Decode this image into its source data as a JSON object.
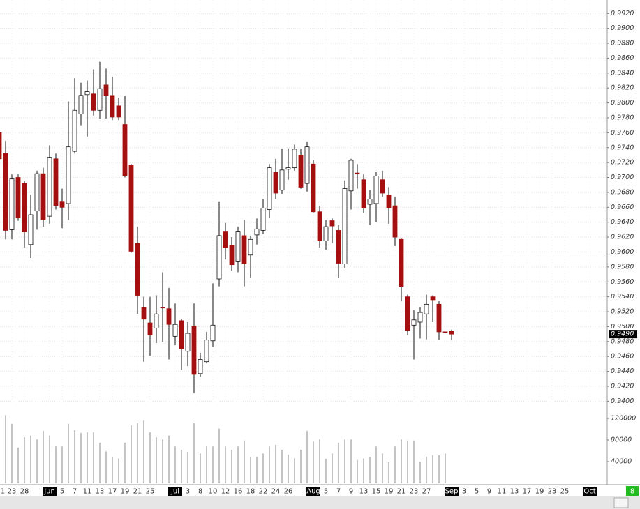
{
  "chart_data": {
    "type": "candlestick",
    "categories": [
      "1",
      null,
      "23",
      null,
      "28",
      null,
      null,
      null,
      "Jun",
      null,
      "5",
      null,
      "7",
      null,
      "11",
      null,
      "13",
      null,
      "17",
      null,
      "19",
      null,
      "21",
      null,
      "25",
      null,
      null,
      null,
      "Jul",
      null,
      "3",
      null,
      "8",
      null,
      "10",
      null,
      "12",
      null,
      "16",
      null,
      "18",
      null,
      "22",
      null,
      "24",
      null,
      "26",
      null,
      null,
      null,
      "Aug",
      null,
      "5",
      null,
      "7",
      null,
      "9",
      null,
      "13",
      null,
      "15",
      null,
      "19",
      null,
      "21",
      null,
      "23",
      null,
      "27",
      null,
      null,
      null,
      "Sep",
      null,
      "3",
      null,
      "5",
      null,
      "9",
      null,
      "11",
      null,
      "13",
      null,
      "17",
      null,
      "19",
      null,
      "23",
      null,
      "25",
      null,
      null,
      null,
      "Oct"
    ],
    "open": [
      0.976,
      0.9732,
      0.963,
      0.97,
      0.9692,
      0.961,
      0.9655,
      0.9705,
      0.9648,
      0.9725,
      0.9668,
      0.9665,
      0.9735,
      0.9785,
      0.9811,
      0.9812,
      0.979,
      0.9824,
      0.981,
      0.9796,
      0.9771,
      0.9716,
      0.9612,
      0.9526,
      0.9505,
      0.9498,
      0.9526,
      0.9524,
      0.9487,
      0.9508,
      0.9467,
      0.9501,
      0.9437,
      0.9453,
      0.9481,
      0.9564,
      0.9627,
      0.9609,
      0.9587,
      0.9622,
      0.9596,
      0.9623,
      0.9629,
      0.9657,
      0.9707,
      0.9683,
      0.9711,
      0.9713,
      0.973,
      0.9692,
      0.9718,
      0.9654,
      0.9615,
      0.9642,
      0.9629,
      0.9584,
      0.9682,
      0.9706,
      0.9697,
      0.9664,
      0.9665,
      0.9697,
      0.9676,
      0.9662,
      0.9617,
      0.954,
      0.9502,
      0.9506,
      0.9517,
      0.954,
      0.953,
      0.9493,
      0.9494,
      null,
      null,
      null,
      null,
      null,
      null,
      null,
      null,
      null,
      null,
      null,
      null,
      null,
      null,
      null,
      null,
      null,
      null,
      null,
      null,
      null,
      null
    ],
    "high": [
      0.976,
      0.9749,
      0.9704,
      0.9704,
      0.9695,
      0.9677,
      0.9709,
      0.9713,
      0.9743,
      0.9732,
      0.9685,
      0.9802,
      0.9833,
      0.9827,
      0.983,
      0.9845,
      0.9855,
      0.9846,
      0.9835,
      0.9807,
      0.9809,
      0.9718,
      0.9634,
      0.954,
      0.954,
      0.9542,
      0.9573,
      0.9552,
      0.9531,
      0.951,
      0.9506,
      0.9531,
      0.9465,
      0.9493,
      0.9558,
      0.9668,
      0.9639,
      0.962,
      0.9634,
      0.9643,
      0.9622,
      0.9645,
      0.9671,
      0.9718,
      0.9725,
      0.9739,
      0.9739,
      0.9744,
      0.9739,
      0.9748,
      0.9723,
      0.9662,
      0.9643,
      0.9645,
      0.9636,
      0.9696,
      0.9725,
      0.9718,
      0.9704,
      0.9683,
      0.9707,
      0.9709,
      0.9687,
      0.9674,
      0.9618,
      0.9543,
      0.9522,
      0.9526,
      0.9543,
      0.9542,
      0.9534,
      0.9493,
      0.9496,
      null,
      null,
      null,
      null,
      null,
      null,
      null,
      null,
      null,
      null,
      null,
      null,
      null,
      null,
      null,
      null,
      null,
      null,
      null,
      null,
      null,
      null
    ],
    "low": [
      0.972,
      0.9617,
      0.9617,
      0.9642,
      0.9606,
      0.9592,
      0.963,
      0.9634,
      0.9638,
      0.9657,
      0.9632,
      0.9643,
      0.9732,
      0.977,
      0.9755,
      0.9783,
      0.9779,
      0.9779,
      0.9777,
      0.9777,
      0.97,
      0.9599,
      0.9517,
      0.9453,
      0.9461,
      0.9478,
      0.9479,
      0.9456,
      0.9475,
      0.9442,
      0.9447,
      0.9411,
      0.9433,
      0.9451,
      0.9473,
      0.9554,
      0.959,
      0.9575,
      0.9573,
      0.9554,
      0.9565,
      0.961,
      0.9624,
      0.9646,
      0.9671,
      0.9678,
      0.9697,
      0.9709,
      0.9685,
      0.9681,
      0.9653,
      0.9606,
      0.9603,
      0.9612,
      0.9565,
      0.9578,
      0.9657,
      0.9685,
      0.9652,
      0.9636,
      0.964,
      0.9674,
      0.9638,
      0.9608,
      0.9534,
      0.9489,
      0.9456,
      0.9484,
      0.9483,
      0.9506,
      0.9482,
      0.9492,
      0.9482,
      null,
      null,
      null,
      null,
      null,
      null,
      null,
      null,
      null,
      null,
      null,
      null,
      null,
      null,
      null,
      null,
      null,
      null,
      null,
      null,
      null,
      null
    ],
    "close": [
      0.9725,
      0.9629,
      0.9698,
      0.9646,
      0.9627,
      0.965,
      0.9705,
      0.9643,
      0.9727,
      0.9662,
      0.966,
      0.9741,
      0.979,
      0.981,
      0.9815,
      0.979,
      0.9819,
      0.981,
      0.9781,
      0.9781,
      0.9702,
      0.9601,
      0.9542,
      0.951,
      0.9489,
      0.9517,
      0.9525,
      0.9503,
      0.9503,
      0.947,
      0.9491,
      0.9436,
      0.9456,
      0.9482,
      0.9502,
      0.9622,
      0.9606,
      0.9583,
      0.9627,
      0.9584,
      0.9617,
      0.9631,
      0.9659,
      0.9713,
      0.9679,
      0.971,
      0.9713,
      0.9738,
      0.9687,
      0.9741,
      0.9654,
      0.9615,
      0.9634,
      0.9635,
      0.9585,
      0.9685,
      0.9723,
      0.9705,
      0.9659,
      0.9671,
      0.9702,
      0.9679,
      0.9659,
      0.962,
      0.9554,
      0.9495,
      0.9509,
      0.9519,
      0.953,
      0.9536,
      0.9493,
      0.9492,
      0.949,
      null,
      null,
      null,
      null,
      null,
      null,
      null,
      null,
      null,
      null,
      null,
      null,
      null,
      null,
      null,
      null,
      null,
      null,
      null,
      null,
      null,
      null
    ],
    "volume": [
      null,
      126000,
      110000,
      66000,
      85000,
      88000,
      81000,
      97000,
      88000,
      68000,
      68000,
      110000,
      98000,
      93000,
      94000,
      94000,
      75000,
      59000,
      49000,
      46000,
      75000,
      107000,
      111000,
      116000,
      94000,
      85000,
      81000,
      88000,
      68000,
      62000,
      58000,
      111000,
      55000,
      68000,
      68000,
      101000,
      68000,
      62000,
      68000,
      79000,
      49000,
      49000,
      55000,
      68000,
      71000,
      62000,
      53000,
      46000,
      62000,
      97000,
      77000,
      81000,
      45000,
      55000,
      75000,
      81000,
      81000,
      43000,
      46000,
      49000,
      68000,
      55000,
      39000,
      68000,
      81000,
      79000,
      79000,
      40000,
      49000,
      52000,
      52000,
      55000,
      null,
      null,
      null,
      null,
      null,
      null,
      null,
      null,
      null,
      null,
      null,
      null,
      null,
      null,
      null,
      null,
      null,
      null,
      null,
      null,
      null,
      null,
      null
    ],
    "up_color": "#ffffff",
    "down_color": "#a50f0f",
    "ylim": [
      0.9391,
      0.9938
    ],
    "yticks": [
      {
        "value": 0.94,
        "label": "0.9400"
      },
      {
        "value": 0.942,
        "label": "0.9420"
      },
      {
        "value": 0.944,
        "label": "0.9440"
      },
      {
        "value": 0.946,
        "label": "0.9460"
      },
      {
        "value": 0.948,
        "label": "0.9480"
      },
      {
        "value": 0.95,
        "label": "0.9500"
      },
      {
        "value": 0.952,
        "label": "0.9520"
      },
      {
        "value": 0.954,
        "label": "0.9540"
      },
      {
        "value": 0.956,
        "label": "0.9560"
      },
      {
        "value": 0.958,
        "label": "0.9580"
      },
      {
        "value": 0.96,
        "label": "0.9600"
      },
      {
        "value": 0.962,
        "label": "0.9620"
      },
      {
        "value": 0.964,
        "label": "0.9640"
      },
      {
        "value": 0.966,
        "label": "0.9660"
      },
      {
        "value": 0.968,
        "label": "0.9680"
      },
      {
        "value": 0.97,
        "label": "0.9700"
      },
      {
        "value": 0.972,
        "label": "0.9720"
      },
      {
        "value": 0.974,
        "label": "0.9740"
      },
      {
        "value": 0.976,
        "label": "0.9760"
      },
      {
        "value": 0.978,
        "label": "0.9780"
      },
      {
        "value": 0.98,
        "label": "0.9800"
      },
      {
        "value": 0.982,
        "label": "0.9820"
      },
      {
        "value": 0.984,
        "label": "0.9840"
      },
      {
        "value": 0.986,
        "label": "0.9860"
      },
      {
        "value": 0.988,
        "label": "0.9880"
      },
      {
        "value": 0.99,
        "label": "0.9900"
      },
      {
        "value": 0.992,
        "label": "0.9920"
      }
    ],
    "volume_ylim": [
      0,
      135500
    ],
    "volume_yticks": [
      40000,
      80000,
      120000
    ],
    "last_price": {
      "value": 0.949,
      "label": "0.9490"
    },
    "grid": true
  },
  "footer": {
    "badge": "8"
  }
}
